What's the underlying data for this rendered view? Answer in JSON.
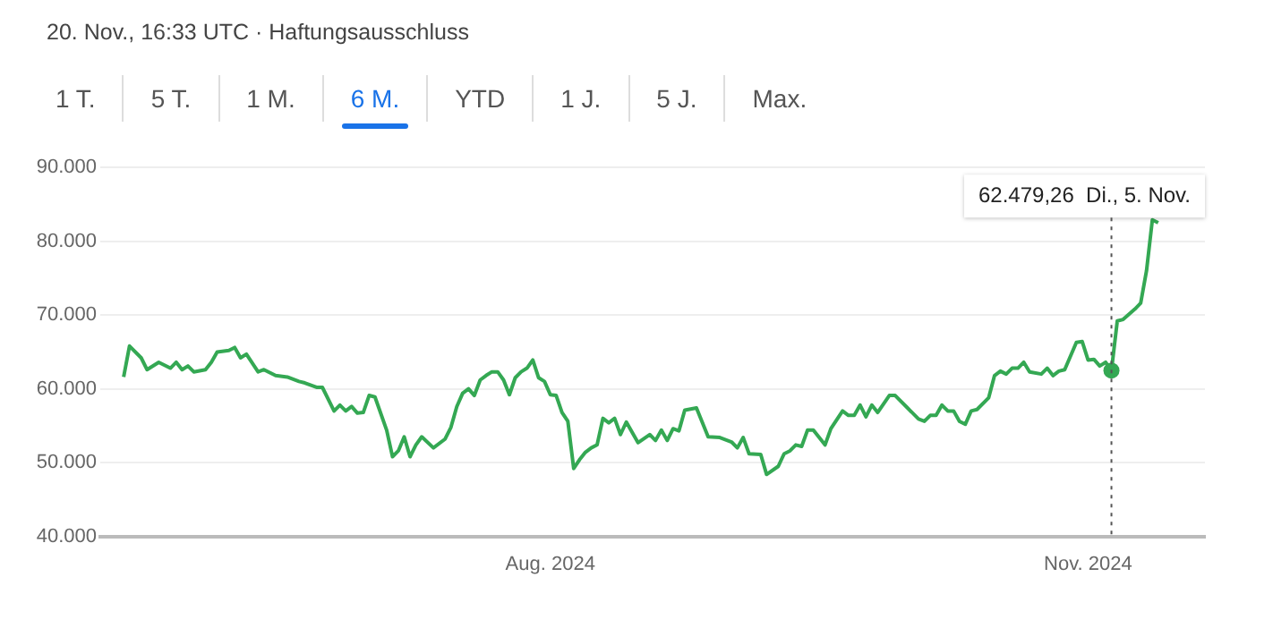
{
  "chart_data": {
    "type": "line",
    "title": "20. Nov., 16:33 UTC · Haftungsausschluss",
    "annotations": [
      "1 T.",
      "5 T.",
      "1 M.",
      "6 M.",
      "YTD",
      "1 J.",
      "5 J.",
      "Max.",
      "62.479,26  Di., 5. Nov."
    ],
    "x": [
      "2024-05-20",
      "2024-05-21",
      "2024-05-23",
      "2024-05-24",
      "2024-05-26",
      "2024-05-28",
      "2024-05-29",
      "2024-05-30",
      "2024-05-31",
      "2024-06-01",
      "2024-06-03",
      "2024-06-04",
      "2024-06-05",
      "2024-06-07",
      "2024-06-08",
      "2024-06-09",
      "2024-06-10",
      "2024-06-12",
      "2024-06-13",
      "2024-06-15",
      "2024-06-17",
      "2024-06-19",
      "2024-06-20",
      "2024-06-22",
      "2024-06-23",
      "2024-06-25",
      "2024-06-26",
      "2024-06-27",
      "2024-06-28",
      "2024-06-29",
      "2024-06-30",
      "2024-07-01",
      "2024-07-02",
      "2024-07-04",
      "2024-07-05",
      "2024-07-06",
      "2024-07-07",
      "2024-07-08",
      "2024-07-09",
      "2024-07-10",
      "2024-07-12",
      "2024-07-14",
      "2024-07-15",
      "2024-07-16",
      "2024-07-17",
      "2024-07-18",
      "2024-07-19",
      "2024-07-20",
      "2024-07-21",
      "2024-07-22",
      "2024-07-23",
      "2024-07-24",
      "2024-07-25",
      "2024-07-26",
      "2024-07-27",
      "2024-07-28",
      "2024-07-29",
      "2024-07-30",
      "2024-07-31",
      "2024-08-01",
      "2024-08-02",
      "2024-08-03",
      "2024-08-04",
      "2024-08-05",
      "2024-08-06",
      "2024-08-07",
      "2024-08-08",
      "2024-08-09",
      "2024-08-10",
      "2024-08-11",
      "2024-08-12",
      "2024-08-13",
      "2024-08-14",
      "2024-08-16",
      "2024-08-18",
      "2024-08-19",
      "2024-08-20",
      "2024-08-21",
      "2024-08-22",
      "2024-08-23",
      "2024-08-24",
      "2024-08-26",
      "2024-08-28",
      "2024-08-30",
      "2024-09-01",
      "2024-09-02",
      "2024-09-03",
      "2024-09-04",
      "2024-09-06",
      "2024-09-07",
      "2024-09-09",
      "2024-09-10",
      "2024-09-11",
      "2024-09-12",
      "2024-09-13",
      "2024-09-14",
      "2024-09-15",
      "2024-09-17",
      "2024-09-18",
      "2024-09-20",
      "2024-09-21",
      "2024-09-22",
      "2024-09-23",
      "2024-09-24",
      "2024-09-25",
      "2024-09-26",
      "2024-09-28",
      "2024-09-29",
      "2024-10-01",
      "2024-10-03",
      "2024-10-04",
      "2024-10-05",
      "2024-10-06",
      "2024-10-07",
      "2024-10-08",
      "2024-10-09",
      "2024-10-10",
      "2024-10-11",
      "2024-10-12",
      "2024-10-13",
      "2024-10-15",
      "2024-10-16",
      "2024-10-17",
      "2024-10-18",
      "2024-10-19",
      "2024-10-20",
      "2024-10-21",
      "2024-10-22",
      "2024-10-24",
      "2024-10-25",
      "2024-10-26",
      "2024-10-27",
      "2024-10-28",
      "2024-10-30",
      "2024-10-31",
      "2024-11-01",
      "2024-11-02",
      "2024-11-03",
      "2024-11-04",
      "2024-11-05",
      "2024-11-06",
      "2024-11-07",
      "2024-11-09",
      "2024-11-10",
      "2024-11-11",
      "2024-11-12",
      "2024-11-13"
    ],
    "series": [
      {
        "color": "#34a853",
        "values": [
          61600,
          65800,
          64200,
          62600,
          63600,
          62800,
          63600,
          62600,
          63100,
          62300,
          62600,
          63600,
          65000,
          65200,
          65600,
          64200,
          64700,
          62300,
          62600,
          61800,
          61600,
          61000,
          60800,
          60200,
          60200,
          57000,
          57800,
          57000,
          57600,
          56700,
          56800,
          59100,
          58900,
          54400,
          50800,
          51600,
          53500,
          50800,
          52400,
          53500,
          52000,
          53200,
          54800,
          57600,
          59400,
          60000,
          59100,
          61200,
          61800,
          62300,
          62300,
          61200,
          59200,
          61500,
          62300,
          62800,
          63900,
          61500,
          61000,
          59200,
          59100,
          56800,
          55600,
          49200,
          50400,
          51400,
          52000,
          52400,
          56000,
          55400,
          56000,
          53800,
          55500,
          52700,
          53800,
          53000,
          54400,
          53000,
          54600,
          54300,
          57100,
          57400,
          53500,
          53400,
          52800,
          52000,
          53400,
          51200,
          51100,
          48400,
          49500,
          51200,
          51600,
          52400,
          52200,
          54400,
          54400,
          52400,
          54600,
          57000,
          56400,
          56400,
          57800,
          56200,
          57800,
          56800,
          59100,
          59100,
          57500,
          55900,
          55600,
          56400,
          56400,
          57800,
          57000,
          57000,
          55600,
          55200,
          57000,
          57200,
          58800,
          61800,
          62400,
          62000,
          62800,
          62800,
          63600,
          62300,
          62000,
          62800,
          61800,
          62400,
          62600,
          66300,
          66400,
          63900,
          64000,
          63100,
          63600,
          62479.26,
          69200,
          69400,
          70800,
          71600,
          76000,
          82900,
          82500
        ]
      }
    ],
    "xlim": [
      "2024-05-16",
      "2024-11-21"
    ],
    "xticks": [
      {
        "value": "2024-08-01",
        "label": "Aug. 2024"
      },
      {
        "value": "2024-11-01",
        "label": "Nov. 2024"
      }
    ],
    "ylim": [
      40000,
      90000
    ],
    "yticks": [
      {
        "value": 40000,
        "label": "40.000"
      },
      {
        "value": 50000,
        "label": "50.000"
      },
      {
        "value": 60000,
        "label": "60.000"
      },
      {
        "value": 70000,
        "label": "70.000"
      },
      {
        "value": 80000,
        "label": "80.000"
      },
      {
        "value": 90000,
        "label": "90.000"
      }
    ],
    "ref_lines": [
      {
        "axis": "x",
        "value": "2024-11-05",
        "color": "#555555",
        "line_style": "dotted"
      }
    ],
    "grid": "y",
    "legend": false,
    "marker": "none",
    "line_style": "solid"
  }
}
